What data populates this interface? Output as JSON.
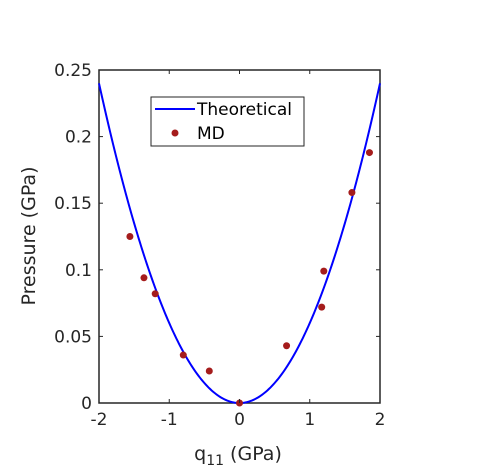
{
  "chart_data": {
    "type": "line",
    "title": "",
    "xlabel": {
      "main": "q",
      "sub": "11",
      "rest": " (GPa)"
    },
    "ylabel": "Pressure (GPa)",
    "xlim": [
      -2,
      2
    ],
    "ylim": [
      0,
      0.25
    ],
    "xticks": [
      -2,
      -1,
      0,
      1,
      2
    ],
    "xtick_labels": [
      "-2",
      "-1",
      "0",
      "1",
      "2"
    ],
    "yticks": [
      0,
      0.05,
      0.1,
      0.15,
      0.2,
      0.25
    ],
    "ytick_labels": [
      "0",
      "0.05",
      "0.1",
      "0.15",
      "0.2",
      "0.25"
    ],
    "grid": false,
    "legend_position": "top-center",
    "series": [
      {
        "name": "Theoretical",
        "kind": "line",
        "color": "#0000ff",
        "x": [
          -2.0,
          -1.8,
          -1.6,
          -1.4,
          -1.2,
          -1.0,
          -0.8,
          -0.6,
          -0.4,
          -0.2,
          0.0,
          0.2,
          0.4,
          0.6,
          0.8,
          1.0,
          1.2,
          1.4,
          1.6,
          1.8,
          2.0
        ],
        "y": [
          0.24,
          0.1944,
          0.1536,
          0.1176,
          0.0864,
          0.06,
          0.0384,
          0.0216,
          0.0096,
          0.0024,
          0.0,
          0.0024,
          0.0096,
          0.0216,
          0.0384,
          0.06,
          0.0864,
          0.1176,
          0.1536,
          0.1944,
          0.24
        ]
      },
      {
        "name": "MD",
        "kind": "scatter",
        "color": "#a51c1c",
        "x": [
          -1.56,
          -1.36,
          -1.2,
          -0.8,
          -0.43,
          0.0,
          0.67,
          1.17,
          1.2,
          1.6,
          1.85
        ],
        "y": [
          0.125,
          0.094,
          0.082,
          0.036,
          0.024,
          0.0,
          0.043,
          0.072,
          0.099,
          0.158,
          0.188
        ]
      }
    ]
  }
}
